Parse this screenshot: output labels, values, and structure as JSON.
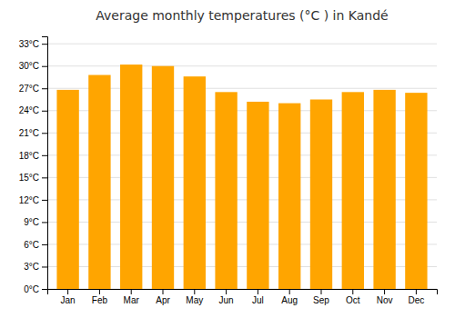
{
  "chart_data": {
    "type": "bar",
    "title": "Average monthly temperatures (°C ) in Kandé",
    "categories": [
      "Jan",
      "Feb",
      "Mar",
      "Apr",
      "May",
      "Jun",
      "Jul",
      "Aug",
      "Sep",
      "Oct",
      "Nov",
      "Dec"
    ],
    "values": [
      26.8,
      28.8,
      30.2,
      30.0,
      28.6,
      26.5,
      25.2,
      25.0,
      25.5,
      26.5,
      26.8,
      26.4
    ],
    "color": "#FFA500",
    "ylim": [
      0,
      34
    ],
    "yticks": [
      {
        "value": 0,
        "label": "0°C"
      },
      {
        "value": 3,
        "label": "3°C"
      },
      {
        "value": 6,
        "label": "6°C"
      },
      {
        "value": 9,
        "label": "9°C"
      },
      {
        "value": 12,
        "label": "12°C"
      },
      {
        "value": 15,
        "label": "15°C"
      },
      {
        "value": 18,
        "label": "18°C"
      },
      {
        "value": 21,
        "label": "21°C"
      },
      {
        "value": 24,
        "label": "24°C"
      },
      {
        "value": 27,
        "label": "27°C"
      },
      {
        "value": 30,
        "label": "30°C"
      },
      {
        "value": 33,
        "label": "33°C"
      }
    ],
    "grid": true
  }
}
